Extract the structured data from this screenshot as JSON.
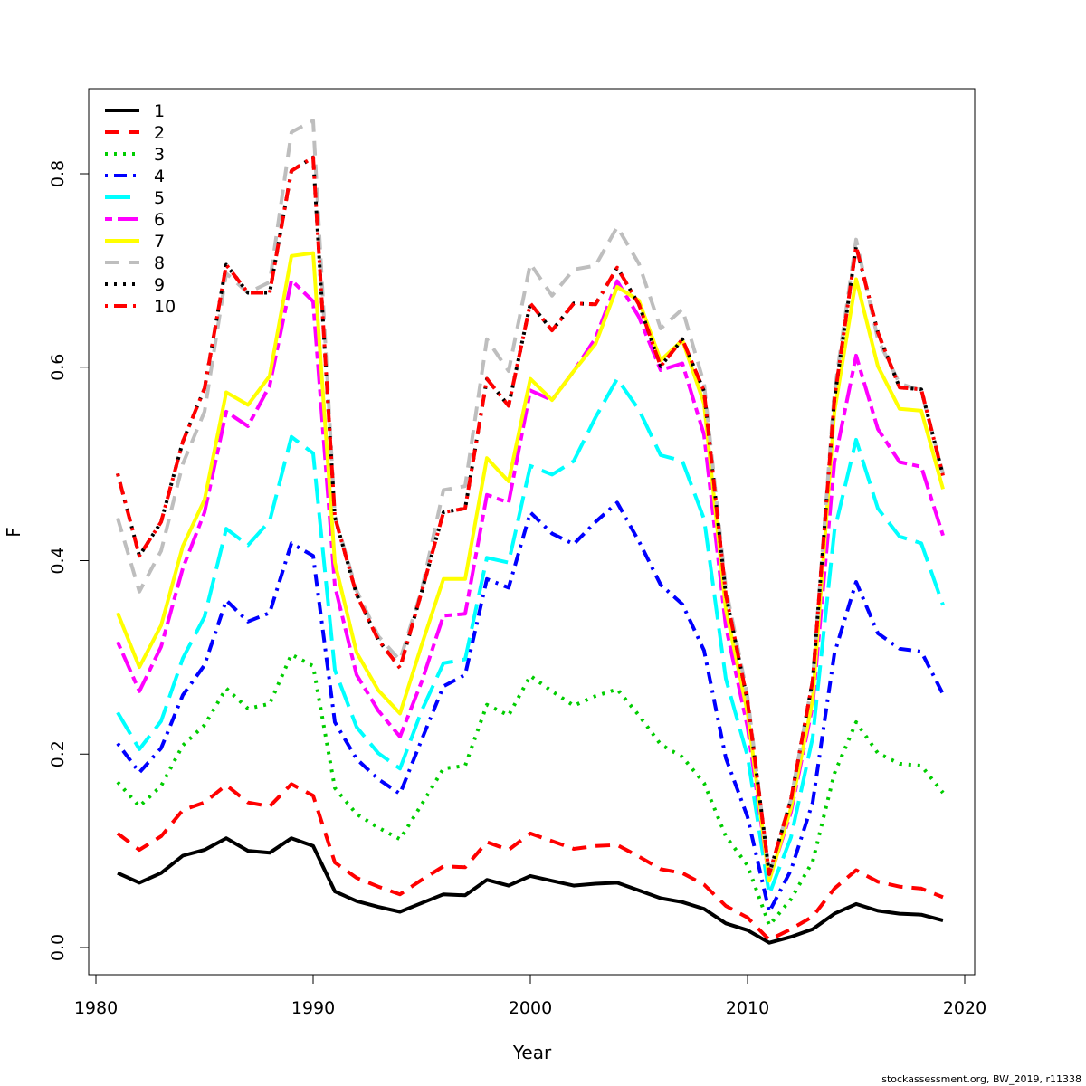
{
  "chart_data": {
    "type": "line",
    "xlabel": "Year",
    "ylabel": "F",
    "xlim": [
      1980,
      2020
    ],
    "ylim": [
      0,
      0.88
    ],
    "x_ticks": [
      "1980",
      "1990",
      "2000",
      "2010",
      "2020"
    ],
    "y_ticks": [
      "0.0",
      "0.2",
      "0.4",
      "0.6",
      "0.8"
    ],
    "legend_position": "top-left",
    "grid": false,
    "x": [
      1981,
      1982,
      1983,
      1984,
      1985,
      1986,
      1987,
      1988,
      1989,
      1990,
      1991,
      1992,
      1993,
      1994,
      1995,
      1996,
      1997,
      1998,
      1999,
      2000,
      2001,
      2002,
      2003,
      2004,
      2005,
      2006,
      2007,
      2008,
      2009,
      2010,
      2011,
      2012,
      2013,
      2014,
      2015,
      2016,
      2017,
      2018,
      2019
    ],
    "series": [
      {
        "name": "1",
        "color": "#000000",
        "dash": "solid",
        "values": [
          0.077,
          0.067,
          0.077,
          0.095,
          0.101,
          0.113,
          0.1,
          0.098,
          0.113,
          0.105,
          0.058,
          0.048,
          0.042,
          0.037,
          0.046,
          0.055,
          0.054,
          0.07,
          0.064,
          0.074,
          0.069,
          0.064,
          0.066,
          0.067,
          0.059,
          0.051,
          0.047,
          0.04,
          0.025,
          0.018,
          0.005,
          0.011,
          0.019,
          0.035,
          0.045,
          0.038,
          0.035,
          0.034,
          0.028
        ]
      },
      {
        "name": "2",
        "color": "#ff0000",
        "dash": "dashed",
        "values": [
          0.118,
          0.101,
          0.115,
          0.142,
          0.15,
          0.168,
          0.15,
          0.146,
          0.169,
          0.157,
          0.088,
          0.072,
          0.063,
          0.055,
          0.07,
          0.084,
          0.083,
          0.109,
          0.101,
          0.118,
          0.11,
          0.102,
          0.105,
          0.106,
          0.094,
          0.081,
          0.077,
          0.065,
          0.043,
          0.031,
          0.008,
          0.019,
          0.032,
          0.061,
          0.08,
          0.068,
          0.063,
          0.061,
          0.052
        ]
      },
      {
        "name": "3",
        "color": "#00cd00",
        "dash": "dotted",
        "values": [
          0.171,
          0.146,
          0.167,
          0.209,
          0.23,
          0.268,
          0.247,
          0.252,
          0.303,
          0.291,
          0.165,
          0.138,
          0.124,
          0.112,
          0.148,
          0.185,
          0.188,
          0.251,
          0.24,
          0.281,
          0.265,
          0.25,
          0.26,
          0.267,
          0.24,
          0.21,
          0.197,
          0.17,
          0.115,
          0.085,
          0.023,
          0.05,
          0.089,
          0.18,
          0.233,
          0.201,
          0.19,
          0.188,
          0.16
        ]
      },
      {
        "name": "4",
        "color": "#0000ff",
        "dash": "dotdash",
        "values": [
          0.211,
          0.181,
          0.206,
          0.261,
          0.292,
          0.359,
          0.337,
          0.346,
          0.418,
          0.405,
          0.233,
          0.195,
          0.174,
          0.159,
          0.215,
          0.27,
          0.282,
          0.381,
          0.372,
          0.45,
          0.428,
          0.417,
          0.44,
          0.46,
          0.42,
          0.375,
          0.355,
          0.307,
          0.196,
          0.135,
          0.037,
          0.08,
          0.15,
          0.304,
          0.378,
          0.325,
          0.309,
          0.306,
          0.262
        ]
      },
      {
        "name": "5",
        "color": "#00ffff",
        "dash": "longdash",
        "values": [
          0.243,
          0.205,
          0.234,
          0.299,
          0.342,
          0.433,
          0.416,
          0.441,
          0.528,
          0.511,
          0.287,
          0.228,
          0.201,
          0.185,
          0.245,
          0.294,
          0.298,
          0.403,
          0.398,
          0.498,
          0.489,
          0.503,
          0.548,
          0.588,
          0.556,
          0.509,
          0.503,
          0.443,
          0.278,
          0.198,
          0.055,
          0.114,
          0.217,
          0.431,
          0.525,
          0.454,
          0.425,
          0.418,
          0.354
        ]
      },
      {
        "name": "6",
        "color": "#ff00ff",
        "dash": "twodash",
        "values": [
          0.316,
          0.265,
          0.311,
          0.392,
          0.45,
          0.554,
          0.539,
          0.581,
          0.69,
          0.668,
          0.374,
          0.282,
          0.245,
          0.218,
          0.275,
          0.343,
          0.345,
          0.468,
          0.46,
          0.576,
          0.566,
          0.596,
          0.63,
          0.689,
          0.652,
          0.597,
          0.604,
          0.53,
          0.332,
          0.228,
          0.07,
          0.14,
          0.25,
          0.502,
          0.612,
          0.536,
          0.502,
          0.497,
          0.426
        ]
      },
      {
        "name": "7",
        "color": "#ffff00",
        "dash": "solid",
        "values": [
          0.346,
          0.29,
          0.333,
          0.415,
          0.463,
          0.574,
          0.561,
          0.591,
          0.715,
          0.718,
          0.398,
          0.305,
          0.266,
          0.242,
          0.313,
          0.381,
          0.381,
          0.506,
          0.482,
          0.588,
          0.566,
          0.596,
          0.624,
          0.683,
          0.669,
          0.607,
          0.628,
          0.562,
          0.35,
          0.243,
          0.069,
          0.144,
          0.256,
          0.554,
          0.691,
          0.601,
          0.557,
          0.555,
          0.474
        ]
      },
      {
        "name": "8",
        "color": "#bebebe",
        "dash": "dashed",
        "values": [
          0.444,
          0.368,
          0.41,
          0.5,
          0.554,
          0.697,
          0.677,
          0.688,
          0.843,
          0.855,
          0.446,
          0.369,
          0.322,
          0.297,
          0.37,
          0.473,
          0.477,
          0.629,
          0.596,
          0.707,
          0.674,
          0.701,
          0.705,
          0.745,
          0.707,
          0.64,
          0.66,
          0.583,
          0.372,
          0.26,
          0.075,
          0.153,
          0.276,
          0.574,
          0.732,
          0.629,
          0.583,
          0.576,
          0.49
        ]
      },
      {
        "name": "9",
        "color": "#000000",
        "dash": "dotted",
        "values": [
          0.49,
          0.405,
          0.44,
          0.523,
          0.578,
          0.706,
          0.677,
          0.677,
          0.803,
          0.817,
          0.445,
          0.365,
          0.318,
          0.289,
          0.368,
          0.45,
          0.454,
          0.588,
          0.56,
          0.666,
          0.638,
          0.666,
          0.665,
          0.703,
          0.665,
          0.601,
          0.629,
          0.575,
          0.365,
          0.255,
          0.076,
          0.153,
          0.276,
          0.567,
          0.725,
          0.636,
          0.579,
          0.577,
          0.488
        ]
      },
      {
        "name": "10",
        "color": "#ff0000",
        "dash": "dotdash",
        "values": [
          0.49,
          0.405,
          0.44,
          0.523,
          0.578,
          0.706,
          0.677,
          0.677,
          0.803,
          0.817,
          0.445,
          0.365,
          0.318,
          0.289,
          0.368,
          0.45,
          0.454,
          0.588,
          0.56,
          0.666,
          0.638,
          0.666,
          0.665,
          0.703,
          0.665,
          0.601,
          0.629,
          0.575,
          0.365,
          0.255,
          0.076,
          0.153,
          0.276,
          0.567,
          0.725,
          0.636,
          0.579,
          0.577,
          0.488
        ]
      }
    ]
  },
  "footer": "stockassessment.org, BW_2019, r11338"
}
